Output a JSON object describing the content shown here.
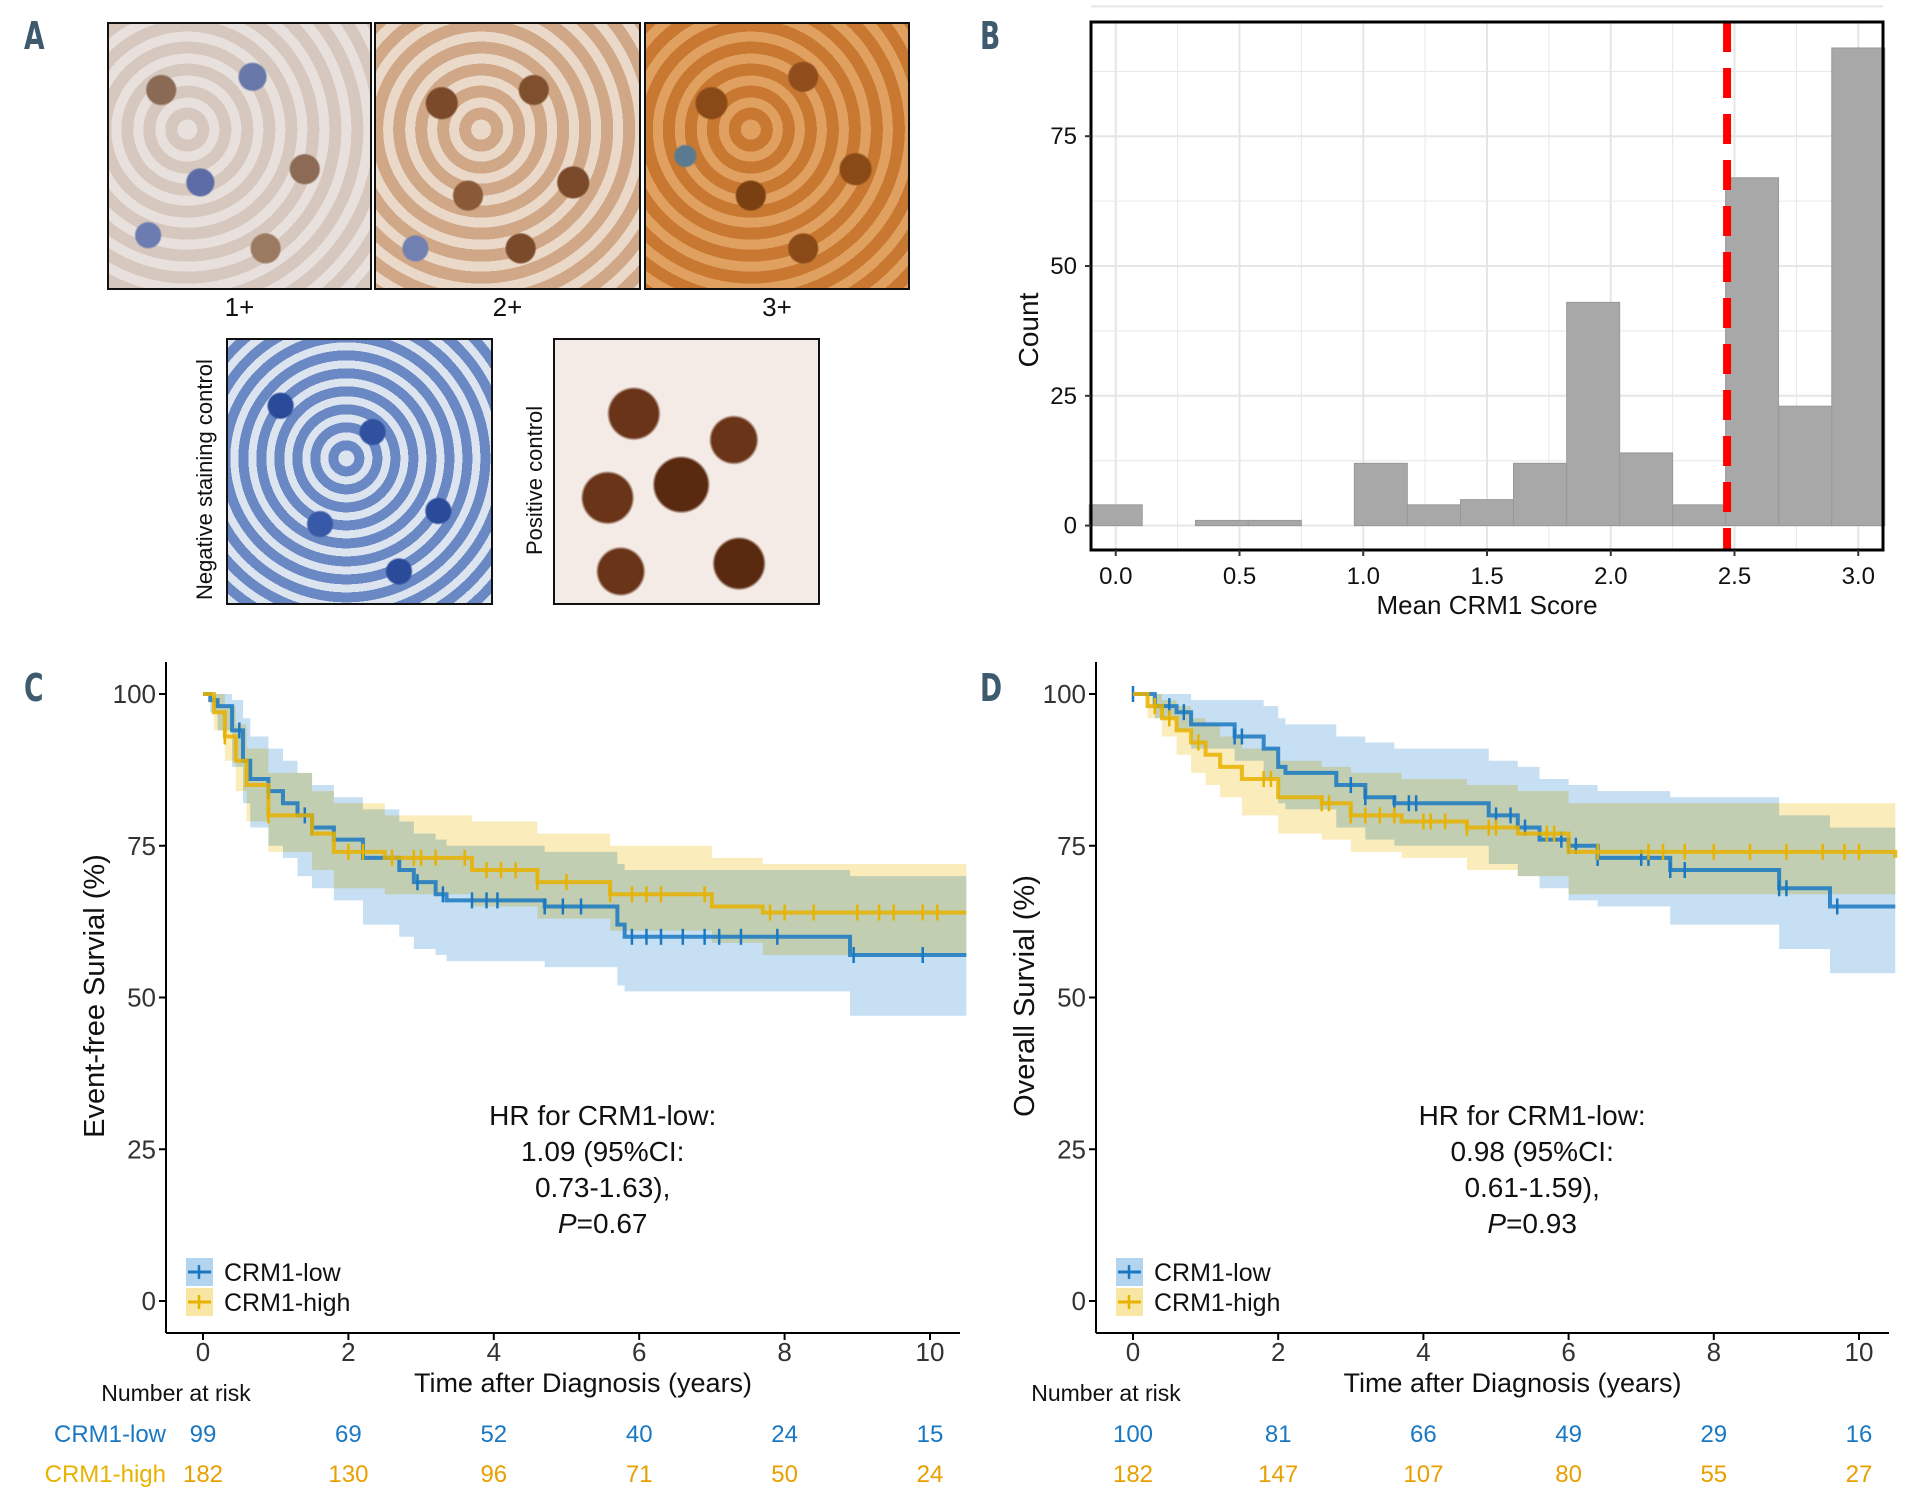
{
  "panels": {
    "a": "A",
    "b": "B",
    "c": "C",
    "d": "D"
  },
  "panel_a": {
    "images": [
      "1+",
      "2+",
      "3+"
    ],
    "negative_control": "Negative staining control",
    "positive_control": "Positive control"
  },
  "colors": {
    "low": "#1a78c2",
    "high": "#e8b200",
    "low_ci": "#b3d4ee",
    "high_ci": "#f8e6a4",
    "overlap_ci": "#c8d2a4",
    "bar": "#a8a8a8",
    "cutoff": "#ff0000",
    "label": "#3d5a6e"
  },
  "chart_data": [
    {
      "type": "bar",
      "title": "",
      "xlabel": "Mean CRM1 Score",
      "ylabel": "Count",
      "bin_centers": [
        0,
        0.214,
        0.429,
        0.643,
        0.857,
        1.071,
        1.286,
        1.5,
        1.714,
        1.929,
        2.143,
        2.357,
        2.571,
        2.786,
        3.0
      ],
      "bin_width": 0.214,
      "values": [
        4,
        0,
        1,
        1,
        0,
        12,
        4,
        5,
        12,
        43,
        14,
        4,
        67,
        23,
        92
      ],
      "xticks": [
        "0.0",
        "0.5",
        "1.0",
        "1.5",
        "2.0",
        "2.5",
        "3.0"
      ],
      "yticks": [
        "0",
        "25",
        "50",
        "75"
      ],
      "xlim": [
        -0.1,
        3.1
      ],
      "ylim": [
        -4.7,
        97
      ],
      "cutoff": 2.47,
      "grid": true
    },
    {
      "type": "line",
      "ylabel": "Event-free Survial (%)",
      "xlabel": "Time after Diagnosis (years)",
      "xticks": [
        "0",
        "2",
        "4",
        "6",
        "8",
        "10"
      ],
      "yticks": [
        "0",
        "25",
        "50",
        "75",
        "100"
      ],
      "xlim": [
        -0.5,
        10.5
      ],
      "ylim": [
        -5,
        105
      ],
      "annotation": [
        "HR for CRM1-low:",
        "1.09 (95%CI:",
        "0.73-1.63),",
        "=0.67"
      ],
      "annotation_p": "P",
      "legend": [
        "CRM1-low",
        "CRM1-high"
      ],
      "legend_position": "bottom-left",
      "series": [
        {
          "name": "CRM1-low",
          "t": [
            0,
            0.1,
            0.2,
            0.4,
            0.55,
            0.65,
            0.9,
            1.1,
            1.3,
            1.5,
            1.8,
            2.2,
            2.7,
            2.9,
            3.2,
            3.35,
            4.7,
            5.7,
            5.8,
            8.9,
            10.5
          ],
          "s": [
            100,
            99,
            98,
            94,
            89,
            86,
            84,
            82,
            80,
            78,
            76,
            73,
            71,
            69,
            67,
            66,
            65,
            62,
            60,
            57,
            57
          ],
          "lo": [
            100,
            97,
            94,
            88,
            82,
            78,
            75,
            73,
            70,
            68,
            66,
            62,
            60,
            58,
            57,
            56,
            55,
            52,
            51,
            47,
            47
          ],
          "hi": [
            100,
            100,
            100,
            99,
            96,
            93,
            91,
            89,
            87,
            85,
            83,
            81,
            79,
            77,
            76,
            75,
            74,
            72,
            71,
            70,
            70
          ],
          "censor": [
            0.5,
            0.9,
            1.4,
            1.5,
            2.95,
            3.3,
            3.7,
            3.9,
            4.05,
            4.7,
            4.95,
            5.2,
            5.9,
            6.1,
            6.3,
            6.6,
            6.9,
            7.1,
            7.4,
            7.9,
            8.95,
            9.9
          ]
        },
        {
          "name": "CRM1-high",
          "t": [
            0,
            0.15,
            0.3,
            0.45,
            0.6,
            0.9,
            1.5,
            1.8,
            2.5,
            3.7,
            4.6,
            5.6,
            7,
            7.7,
            10.5
          ],
          "s": [
            100,
            97,
            93,
            89,
            85,
            80,
            77,
            74,
            73,
            71,
            69,
            67,
            65,
            64,
            64
          ],
          "lo": [
            100,
            94,
            89,
            84,
            79,
            74,
            71,
            68,
            67,
            65,
            63,
            61,
            59,
            57,
            57
          ],
          "hi": [
            100,
            100,
            98,
            95,
            91,
            87,
            84,
            82,
            80,
            79,
            77,
            75,
            73,
            72,
            72
          ],
          "censor": [
            0.3,
            0.9,
            2.0,
            2.2,
            2.6,
            2.9,
            3.0,
            3.2,
            3.6,
            3.9,
            4.1,
            4.3,
            4.6,
            5.0,
            5.6,
            5.9,
            6.1,
            6.3,
            6.9,
            7.8,
            8.0,
            8.4,
            9.0,
            9.3,
            9.5,
            9.9,
            10.1
          ]
        }
      ],
      "risk_table": {
        "title": "Number at risk",
        "rows": [
          {
            "label": "CRM1-low",
            "values": [
              "99",
              "69",
              "52",
              "40",
              "24",
              "15"
            ]
          },
          {
            "label": "CRM1-high",
            "values": [
              "182",
              "130",
              "96",
              "71",
              "50",
              "24"
            ]
          }
        ]
      }
    },
    {
      "type": "line",
      "ylabel": "Overall Survial (%)",
      "xlabel": "Time after Diagnosis (years)",
      "xticks": [
        "0",
        "2",
        "4",
        "6",
        "8",
        "10"
      ],
      "yticks": [
        "0",
        "25",
        "50",
        "75",
        "100"
      ],
      "xlim": [
        -0.5,
        10.5
      ],
      "ylim": [
        -5,
        105
      ],
      "annotation": [
        "HR for CRM1-low:",
        "0.98 (95%CI:",
        "0.61-1.59),",
        "=0.93"
      ],
      "annotation_p": "P",
      "legend": [
        "CRM1-low",
        "CRM1-high"
      ],
      "legend_position": "bottom-left",
      "series": [
        {
          "name": "CRM1-low",
          "t": [
            0,
            0.3,
            0.6,
            0.8,
            1.4,
            1.8,
            2.0,
            2.1,
            2.8,
            3.2,
            3.6,
            4.9,
            5.3,
            5.6,
            6.0,
            6.4,
            7.4,
            8.9,
            9.6,
            10.5
          ],
          "s": [
            100,
            98,
            97,
            95,
            93,
            91,
            88,
            87,
            85,
            83,
            82,
            80,
            78,
            76,
            75,
            73,
            71,
            68,
            65,
            65
          ],
          "lo": [
            100,
            96,
            94,
            91,
            89,
            86,
            82,
            81,
            78,
            76,
            75,
            72,
            70,
            68,
            66,
            65,
            62,
            58,
            54,
            54
          ],
          "hi": [
            100,
            100,
            100,
            99,
            99,
            98,
            96,
            95,
            93,
            92,
            91,
            89,
            88,
            86,
            85,
            84,
            83,
            80,
            78,
            78
          ],
          "censor": [
            0,
            0.5,
            0.7,
            1.4,
            1.5,
            3.0,
            3.2,
            3.6,
            3.8,
            3.9,
            5.0,
            5.2,
            5.4,
            5.9,
            6.0,
            6.1,
            6.4,
            7.0,
            7.1,
            7.4,
            7.6,
            8.9,
            9.0,
            9.7
          ]
        },
        {
          "name": "CRM1-high",
          "t": [
            0,
            0.2,
            0.4,
            0.6,
            0.8,
            1.0,
            1.2,
            1.5,
            2.0,
            2.6,
            3.0,
            3.7,
            4.6,
            5.3,
            6.0,
            10.5
          ],
          "s": [
            100,
            98,
            96,
            94,
            92,
            90,
            88,
            86,
            83,
            82,
            80,
            79,
            78,
            77,
            74,
            73
          ],
          "lo": [
            100,
            96,
            93,
            90,
            87,
            85,
            83,
            80,
            77,
            76,
            74,
            73,
            71,
            70,
            67,
            67
          ],
          "hi": [
            100,
            100,
            99,
            98,
            96,
            95,
            93,
            91,
            89,
            88,
            87,
            86,
            85,
            84,
            82,
            80
          ],
          "censor": [
            0.3,
            0.5,
            0.9,
            1.8,
            1.9,
            2.6,
            2.7,
            3.0,
            3.2,
            3.4,
            3.6,
            4.0,
            4.1,
            4.3,
            4.6,
            4.9,
            5.0,
            5.7,
            5.8,
            6.4,
            7.1,
            7.3,
            7.6,
            8.0,
            8.5,
            9.0,
            9.5,
            9.8,
            10.0
          ]
        }
      ],
      "risk_table": {
        "title": "Number at risk",
        "rows": [
          {
            "label": "CRM1-low",
            "values": [
              "100",
              "81",
              "66",
              "49",
              "29",
              "16"
            ]
          },
          {
            "label": "CRM1-high",
            "values": [
              "182",
              "147",
              "107",
              "80",
              "55",
              "27"
            ]
          }
        ]
      }
    }
  ]
}
